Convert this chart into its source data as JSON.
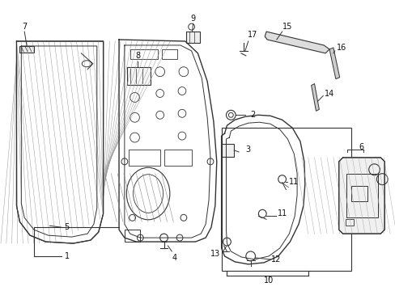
{
  "bg_color": "#ffffff",
  "line_color": "#333333",
  "label_color": "#111111",
  "fig_width": 4.89,
  "fig_height": 3.6,
  "dpi": 100
}
